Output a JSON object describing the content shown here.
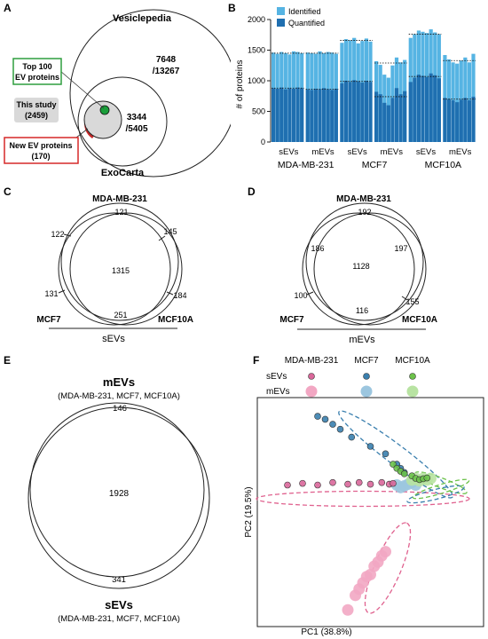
{
  "panels": {
    "A": {
      "letter": "A",
      "vesiclepedia_label": "Vesiclepedia",
      "exocarta_label": "ExoCarta",
      "outer_line1": "7648",
      "outer_line2": "/13267",
      "inner_line1": "3344",
      "inner_line2": "/5405",
      "top100_line1": "Top 100",
      "top100_line2": "EV proteins",
      "this_study_line1": "This study",
      "this_study_line2": "(2459)",
      "new_line1": "New EV proteins",
      "new_line2": "(170)",
      "colors": {
        "top100_box": "#2e9e3e",
        "new_box": "#d62828",
        "this_study_fill": "#d9d9d9",
        "dot": "#1a9e3a",
        "new_region": "#c62828"
      }
    },
    "B": {
      "letter": "B",
      "ylabel": "# of proteins",
      "legend": [
        "Identified",
        "Quantified"
      ],
      "yticks": [
        "0",
        "500",
        "1000",
        "1500",
        "2000"
      ],
      "ev_labels": [
        "sEVs",
        "mEVs",
        "sEVs",
        "mEVs",
        "sEVs",
        "mEVs"
      ],
      "cell_labels": [
        "MDA-MB-231",
        "MCF7",
        "MCF10A"
      ],
      "colors": {
        "identified": "#56b4e3",
        "quantified": "#1f6fb0"
      }
    },
    "C": {
      "letter": "C",
      "top_label": "MDA-MB-231",
      "left_label": "MCF7",
      "right_label": "MCF10A",
      "values": {
        "top": "121",
        "ul": "122",
        "ur": "145",
        "center": "1315",
        "ll": "131",
        "lr": "184",
        "bottom": "251"
      },
      "title": "sEVs"
    },
    "D": {
      "letter": "D",
      "top_label": "MDA-MB-231",
      "left_label": "MCF7",
      "right_label": "MCF10A",
      "values": {
        "top": "192",
        "ul": "186",
        "ur": "197",
        "center": "1128",
        "ll": "100",
        "lr": "155",
        "bottom": "116"
      },
      "title": "mEVs"
    },
    "E": {
      "letter": "E",
      "top_title": "mEVs",
      "top_sub": "(MDA-MB-231, MCF7, MCF10A)",
      "top_value": "146",
      "center_value": "1928",
      "bottom_value": "341",
      "bottom_title": "sEVs",
      "bottom_sub": "(MDA-MB-231, MCF7, MCF10A)"
    },
    "F": {
      "letter": "F",
      "legend_cols": [
        "MDA-MB-231",
        "MCF7",
        "MCF10A"
      ],
      "legend_rows": [
        "sEVs",
        "mEVs"
      ],
      "xlabel": "PC1 (38.8%)",
      "ylabel": "PC2 (19.5%)",
      "colors": {
        "mda": "#d9679a",
        "mcf7": "#3a7fae",
        "mcf10a": "#6cc24a",
        "mda_light": "#f2a7c3",
        "mcf7_light": "#9cc6df",
        "mcf10a_light": "#b8e3a2"
      }
    }
  },
  "chart_data": [
    {
      "type": "bar",
      "title": "",
      "ylabel": "# of proteins",
      "ylim": [
        0,
        2000
      ],
      "groups": [
        "MDA-MB-231 sEVs",
        "MDA-MB-231 mEVs",
        "MCF7 sEVs",
        "MCF7 mEVs",
        "MCF10A sEVs",
        "MCF10A mEVs"
      ],
      "bars_per_group": 8,
      "series": [
        {
          "name": "Identified",
          "values": [
            1460,
            1440,
            1470,
            1450,
            1430,
            1480,
            1470,
            1450,
            1460,
            1450,
            1440,
            1480,
            1450,
            1470,
            1460,
            1440,
            1620,
            1680,
            1660,
            1700,
            1610,
            1650,
            1690,
            1640,
            1320,
            1260,
            1100,
            1050,
            1250,
            1380,
            1300,
            1340,
            1700,
            1760,
            1820,
            1800,
            1780,
            1840,
            1790,
            1760,
            1420,
            1350,
            1300,
            1280,
            1330,
            1380,
            1300,
            1440
          ]
        },
        {
          "name": "Quantified",
          "values": [
            880,
            870,
            890,
            860,
            880,
            870,
            890,
            880,
            860,
            850,
            870,
            860,
            880,
            860,
            850,
            870,
            960,
            1000,
            980,
            1010,
            990,
            970,
            1000,
            980,
            820,
            780,
            640,
            600,
            720,
            880,
            780,
            830,
            980,
            1050,
            1100,
            1080,
            1060,
            1120,
            1090,
            1040,
            720,
            700,
            680,
            650,
            690,
            720,
            680,
            740
          ]
        }
      ],
      "group_means": {
        "Identified": [
          1450,
          1450,
          1660,
          1290,
          1760,
          1330
        ],
        "Quantified": [
          880,
          860,
          990,
          740,
          1070,
          700
        ]
      }
    },
    {
      "type": "scatter",
      "xlabel": "PC1 (38.8%)",
      "ylabel": "PC2 (19.5%)",
      "xlim": [
        -30,
        30
      ],
      "ylim": [
        -30,
        25
      ],
      "series": [
        {
          "name": "MDA-MB-231 sEVs",
          "points": [
            [
              -22,
              4
            ],
            [
              -18,
              4.4
            ],
            [
              -14,
              4
            ],
            [
              -10,
              4.6
            ],
            [
              -6,
              4.2
            ],
            [
              -3,
              4.6
            ],
            [
              0,
              4.2
            ],
            [
              3,
              4.6
            ],
            [
              5,
              4.2
            ],
            [
              6,
              4.4
            ]
          ]
        },
        {
          "name": "MCF7 sEVs",
          "points": [
            [
              -14,
              20.5
            ],
            [
              -12,
              19.8
            ],
            [
              -10,
              18.6
            ],
            [
              -8,
              17.4
            ],
            [
              -5,
              15.5
            ],
            [
              0,
              13.3
            ],
            [
              4,
              11.5
            ],
            [
              7,
              9
            ],
            [
              8,
              8
            ],
            [
              9,
              7
            ]
          ]
        },
        {
          "name": "MCF10A sEVs",
          "points": [
            [
              6,
              9
            ],
            [
              7,
              8
            ],
            [
              8,
              7.3
            ],
            [
              9,
              6.7
            ],
            [
              11,
              6.2
            ],
            [
              12,
              5.6
            ],
            [
              13,
              5.3
            ],
            [
              14,
              5.5
            ],
            [
              15,
              5.7
            ]
          ]
        },
        {
          "name": "MDA-MB-231 mEVs",
          "points": [
            [
              -6,
              -26
            ],
            [
              -4,
              -22.5
            ],
            [
              -3,
              -21
            ],
            [
              -2,
              -19.5
            ],
            [
              -1,
              -18
            ],
            [
              0,
              -17.5
            ],
            [
              1,
              -15.5
            ],
            [
              2,
              -14.5
            ],
            [
              3,
              -13
            ],
            [
              4,
              -12
            ]
          ]
        },
        {
          "name": "MCF7 mEVs",
          "points": [
            [
              7,
              4
            ],
            [
              8,
              3.4
            ],
            [
              9,
              3.8
            ],
            [
              10,
              4.2
            ],
            [
              11,
              4.6
            ],
            [
              12,
              4
            ]
          ]
        },
        {
          "name": "MCF10A mEVs",
          "points": [
            [
              11,
              5.2
            ],
            [
              12,
              5.6
            ],
            [
              13,
              5
            ],
            [
              14,
              5.6
            ],
            [
              15,
              5.2
            ],
            [
              16,
              5.6
            ]
          ]
        }
      ]
    }
  ]
}
